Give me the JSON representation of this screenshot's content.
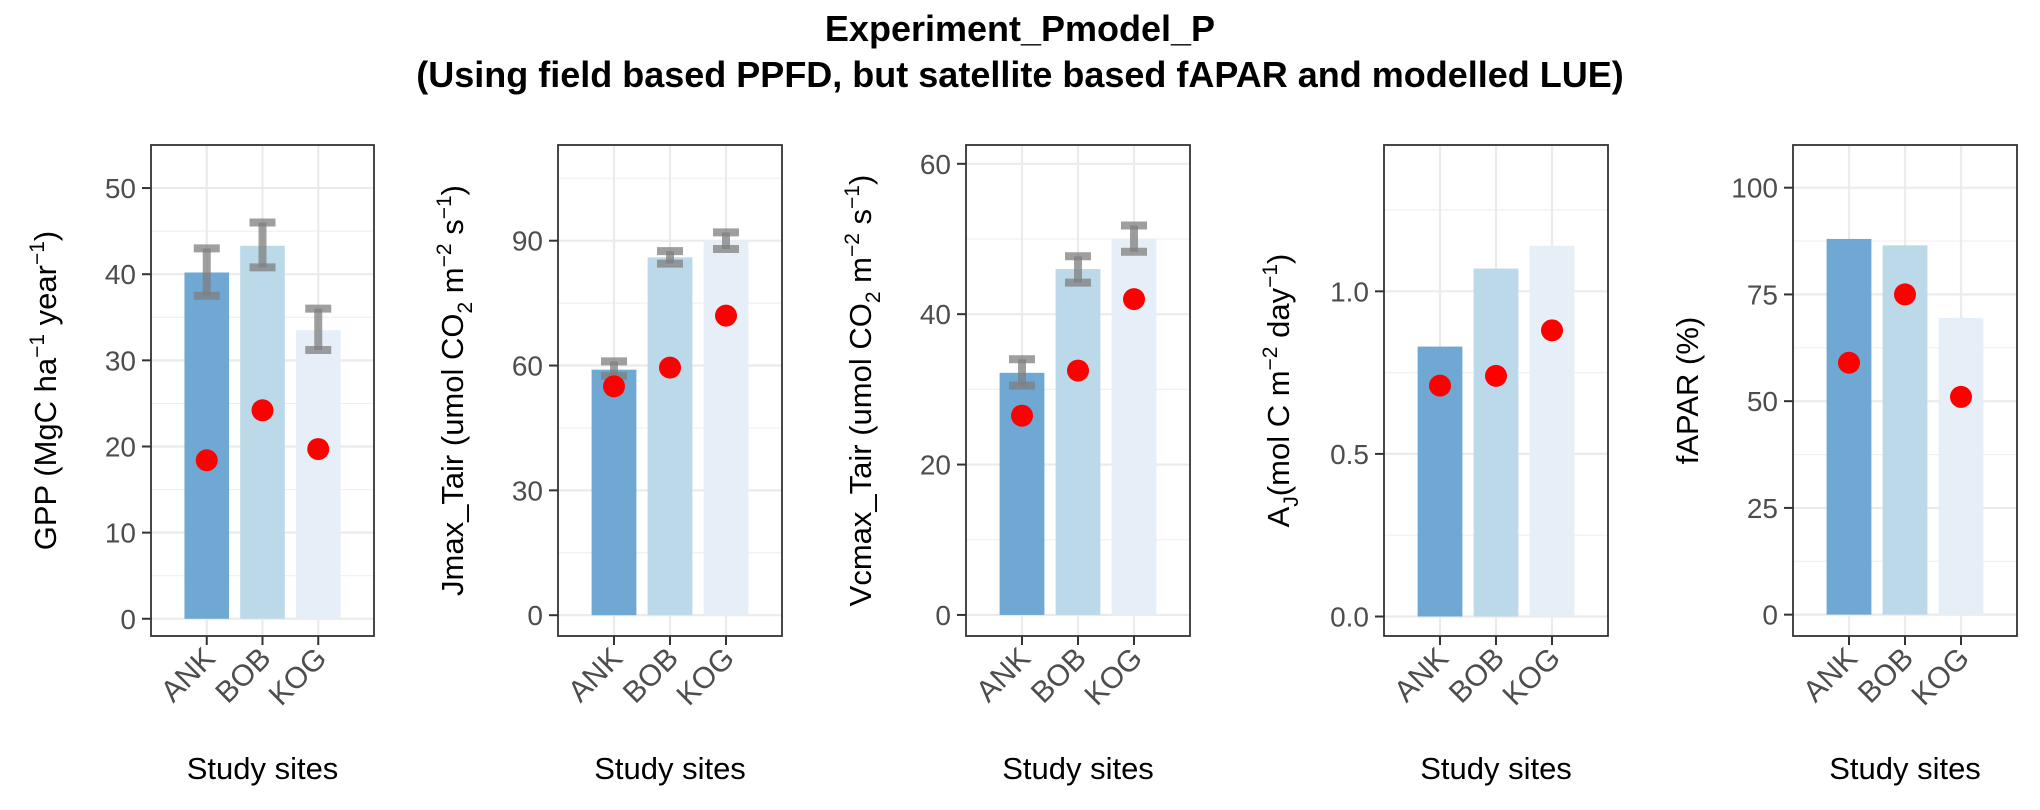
{
  "figure": {
    "title": "Experiment_Pmodel_P",
    "subtitle": "(Using field based PPFD, but satellite based fAPAR and modelled LUE)"
  },
  "colors": {
    "ANK": "#6fa8d2",
    "BOB": "#bcd9ea",
    "KOG": "#e6eff8",
    "point": "#ff0000",
    "errorbar": "#7f7f7f"
  },
  "chart_data": [
    {
      "type": "bar",
      "categories": [
        "ANK",
        "BOB",
        "KOG"
      ],
      "values": [
        40.2,
        43.3,
        33.5
      ],
      "error_low": [
        37.5,
        40.8,
        31.2
      ],
      "error_high": [
        43.0,
        46.0,
        36.0
      ],
      "points": [
        18.4,
        24.2,
        19.7
      ],
      "ylim": [
        -2,
        55
      ],
      "yticks": [
        0,
        10,
        20,
        30,
        40,
        50
      ],
      "ytick_labels": [
        "0",
        "10",
        "20",
        "30",
        "40",
        "50"
      ],
      "xlabel": "Study sites",
      "ylabel": {
        "parts": [
          "GPP (MgC ha",
          "−1",
          " year",
          "−1",
          ")"
        ]
      }
    },
    {
      "type": "bar",
      "categories": [
        "ANK",
        "BOB",
        "KOG"
      ],
      "values": [
        59,
        86,
        90
      ],
      "error_low": [
        57.5,
        84.5,
        88
      ],
      "error_high": [
        61,
        87.5,
        92
      ],
      "points": [
        55,
        59.5,
        72
      ],
      "ylim": [
        -5,
        113
      ],
      "yticks": [
        0,
        30,
        60,
        90
      ],
      "ytick_labels": [
        "0",
        "30",
        "60",
        "90"
      ],
      "xlabel": "Study sites",
      "ylabel": {
        "parts": [
          "Jmax_Tair (umol CO",
          "2",
          " m",
          "−2",
          " s",
          "−1",
          ")"
        ]
      }
    },
    {
      "type": "bar",
      "categories": [
        "ANK",
        "BOB",
        "KOG"
      ],
      "values": [
        32.2,
        46,
        50
      ],
      "error_low": [
        30.5,
        44.2,
        48.3
      ],
      "error_high": [
        34,
        47.7,
        51.8
      ],
      "points": [
        26.5,
        32.5,
        42
      ],
      "ylim": [
        -2.8,
        62.5
      ],
      "yticks": [
        0,
        20,
        40,
        60
      ],
      "ytick_labels": [
        "0",
        "20",
        "40",
        "60"
      ],
      "xlabel": "Study sites",
      "ylabel": {
        "parts": [
          "Vcmax_Tair (umol CO",
          "2",
          " m",
          "−2",
          " s",
          "−1",
          ")"
        ]
      }
    },
    {
      "type": "bar",
      "categories": [
        "ANK",
        "BOB",
        "KOG"
      ],
      "values": [
        0.83,
        1.07,
        1.14
      ],
      "points": [
        0.71,
        0.74,
        0.88
      ],
      "ylim": [
        -0.06,
        1.45
      ],
      "yticks": [
        0.0,
        0.5,
        1.0
      ],
      "ytick_labels": [
        "0.0",
        "0.5",
        "1.0"
      ],
      "xlabel": "Study sites",
      "ylabel": {
        "parts": [
          "A",
          "J",
          "(mol C m",
          "−2",
          " day",
          "−1",
          ")"
        ]
      }
    },
    {
      "type": "bar",
      "categories": [
        "ANK",
        "BOB",
        "KOG"
      ],
      "values": [
        88,
        86.5,
        69.5
      ],
      "points": [
        59,
        75,
        51
      ],
      "ylim": [
        -5,
        110
      ],
      "yticks": [
        0,
        25,
        50,
        75,
        100
      ],
      "ytick_labels": [
        "0",
        "25",
        "50",
        "75",
        "100"
      ],
      "xlabel": "Study sites",
      "ylabel": {
        "parts": [
          "fAPAR (%)"
        ]
      }
    }
  ]
}
